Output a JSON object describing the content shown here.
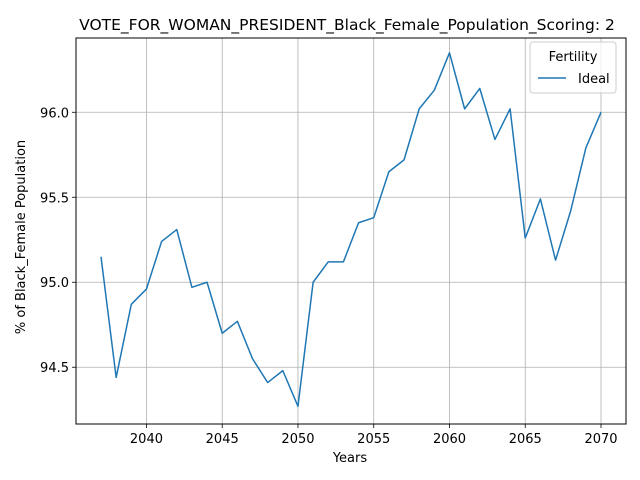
{
  "chart_data": {
    "type": "line",
    "title": "VOTE_FOR_WOMAN_PRESIDENT_Black_Female_Population_Scoring: 2",
    "xlabel": "Years",
    "ylabel": "% of Black_Female Population",
    "xlim": [
      2035.35,
      2071.65
    ],
    "ylim": [
      94.166,
      96.437
    ],
    "xticks": [
      2040,
      2045,
      2050,
      2055,
      2060,
      2065,
      2070
    ],
    "yticks": [
      94.5,
      95.0,
      95.5,
      96.0
    ],
    "grid": true,
    "legend": {
      "title": "Fertility",
      "position": "top-right"
    },
    "series": [
      {
        "name": "Ideal",
        "color": "#1f77b4",
        "x": [
          2037,
          2038,
          2039,
          2040,
          2041,
          2042,
          2043,
          2044,
          2045,
          2046,
          2047,
          2048,
          2049,
          2050,
          2051,
          2052,
          2053,
          2054,
          2055,
          2056,
          2057,
          2058,
          2059,
          2060,
          2061,
          2062,
          2063,
          2064,
          2065,
          2066,
          2067,
          2068,
          2069,
          2070
        ],
        "values": [
          95.15,
          94.44,
          94.87,
          94.96,
          95.24,
          95.31,
          94.97,
          95.0,
          94.7,
          94.77,
          94.55,
          94.41,
          94.48,
          94.27,
          95.0,
          95.12,
          95.12,
          95.35,
          95.38,
          95.65,
          95.72,
          96.02,
          96.13,
          96.35,
          96.02,
          96.14,
          95.84,
          96.02,
          95.26,
          95.49,
          95.13,
          95.42,
          95.79,
          96.0
        ]
      }
    ]
  }
}
